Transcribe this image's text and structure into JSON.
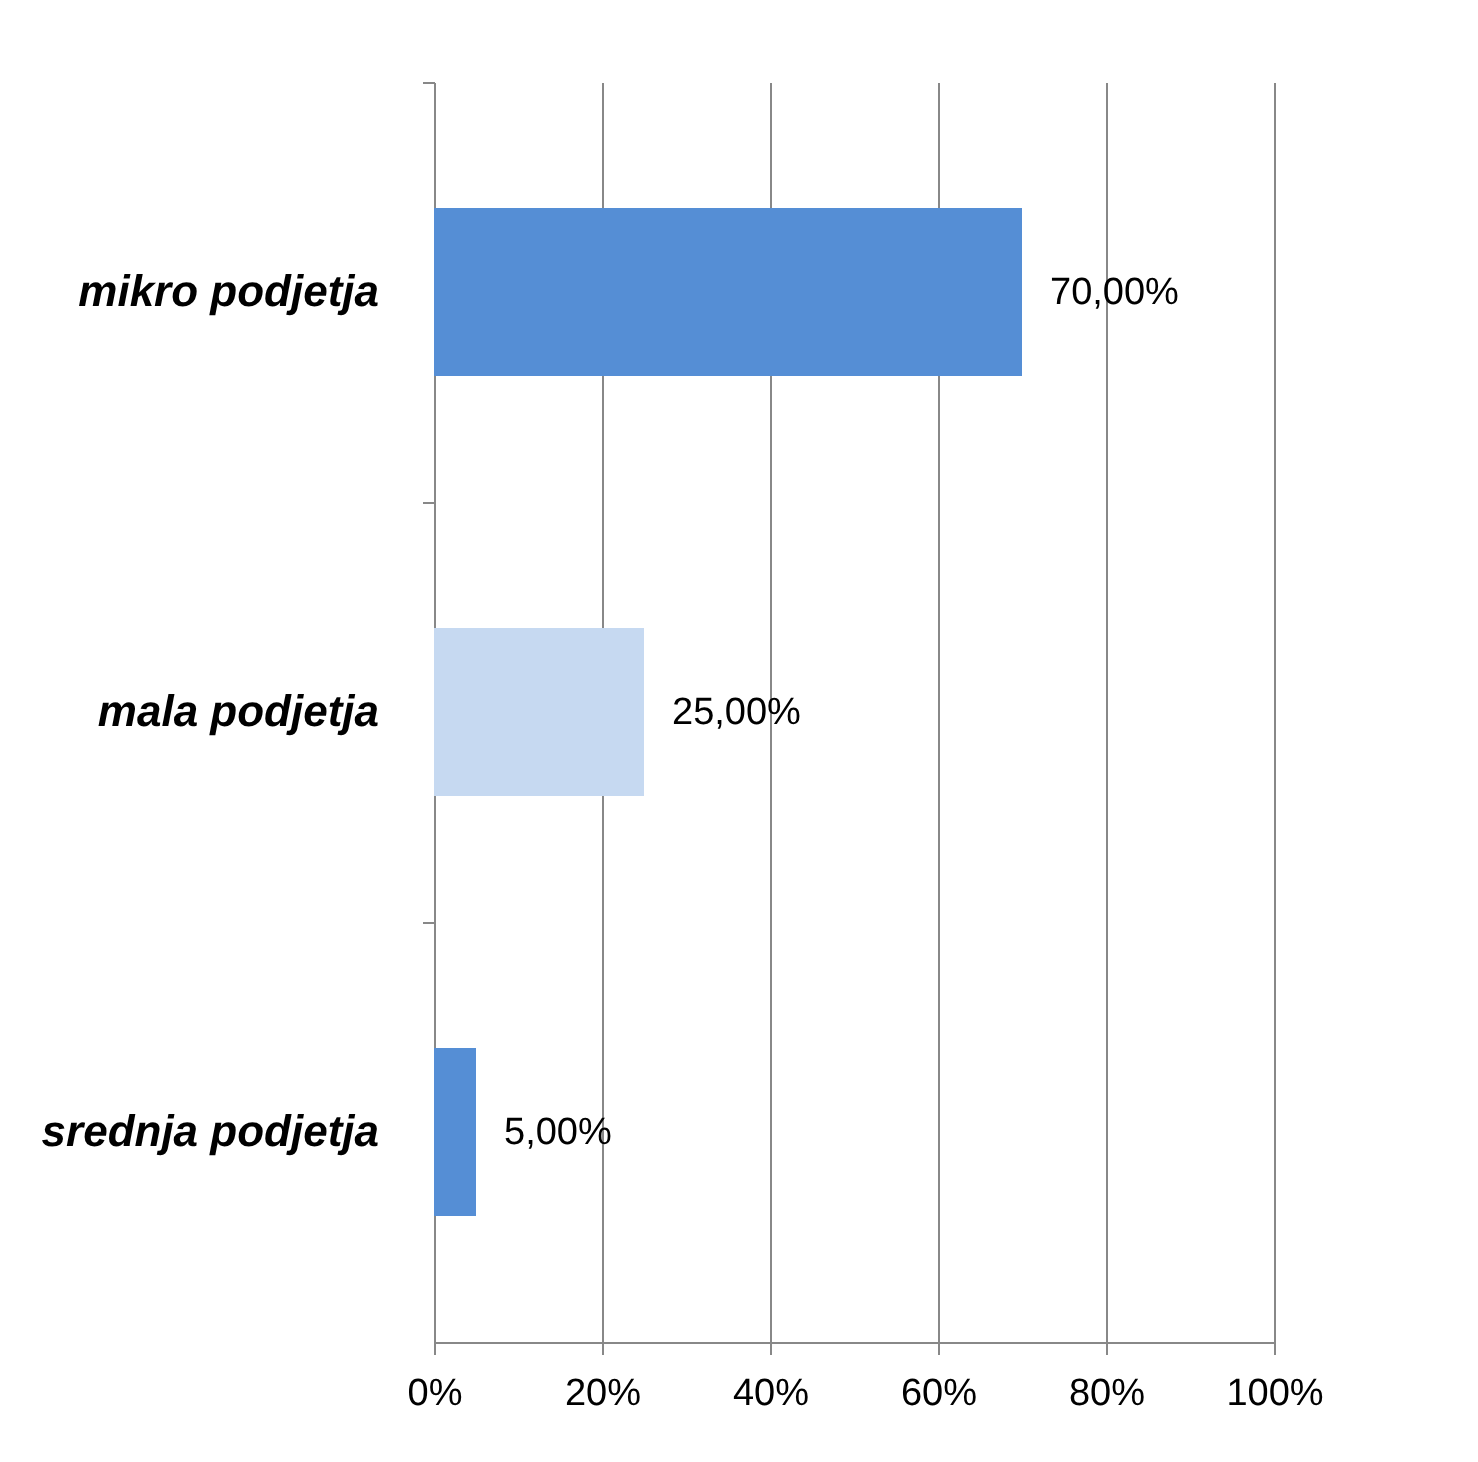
{
  "chart_data": {
    "type": "bar",
    "orientation": "horizontal",
    "categories": [
      "mikro podjetja",
      "mala podjetja",
      "srednja podjetja"
    ],
    "values": [
      70,
      25,
      5
    ],
    "colors": [
      "#558ed5",
      "#c6d9f1",
      "#558ed5"
    ],
    "value_labels": [
      "70,00%",
      "25,00%",
      "5,00%"
    ],
    "xlim": [
      0,
      100
    ],
    "xticks": [
      {
        "value": 0,
        "label": "0%"
      },
      {
        "value": 20,
        "label": "20%"
      },
      {
        "value": 40,
        "label": "40%"
      },
      {
        "value": 60,
        "label": "60%"
      },
      {
        "value": 80,
        "label": "80%"
      },
      {
        "value": 100,
        "label": "100%"
      }
    ],
    "grid": "x",
    "legend": false
  }
}
